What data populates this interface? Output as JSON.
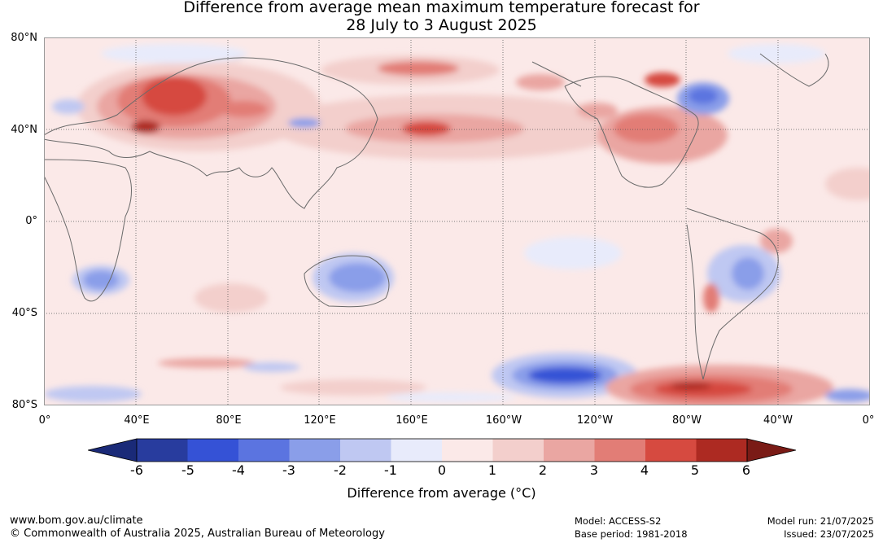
{
  "title_line1": "Difference from average mean maximum temperature forecast for",
  "title_line2": "28 July to 3 August 2025",
  "lat_labels": [
    "80°N",
    "40°N",
    "0°",
    "40°S",
    "80°S"
  ],
  "lon_labels": [
    "0°",
    "40°E",
    "80°E",
    "120°E",
    "160°E",
    "160°W",
    "120°W",
    "80°W",
    "40°W",
    "0°"
  ],
  "legend": {
    "title": "Difference from average (°C)",
    "ticks": [
      "-6",
      "-5",
      "-4",
      "-3",
      "-2",
      "-1",
      "0",
      "1",
      "2",
      "3",
      "4",
      "5",
      "6"
    ],
    "colors": [
      "#283c9e",
      "#3552d6",
      "#5b74e0",
      "#8a9ee9",
      "#bfc8f2",
      "#e8ebfb",
      "#fbe9e8",
      "#f3cfcc",
      "#eaa6a2",
      "#e27d76",
      "#d64a40",
      "#ad2a22"
    ],
    "low_extend_color": "#1a2a78",
    "high_extend_color": "#7a1b16"
  },
  "footer": {
    "website": "www.bom.gov.au/climate",
    "copyright": "© Commonwealth of Australia 2025, Australian Bureau of Meteorology",
    "model": "Model: ACCESS-S2",
    "base_period": "Base period: 1981-2018",
    "model_run": "Model run: 21/07/2025",
    "issued": "Issued: 23/07/2025"
  }
}
